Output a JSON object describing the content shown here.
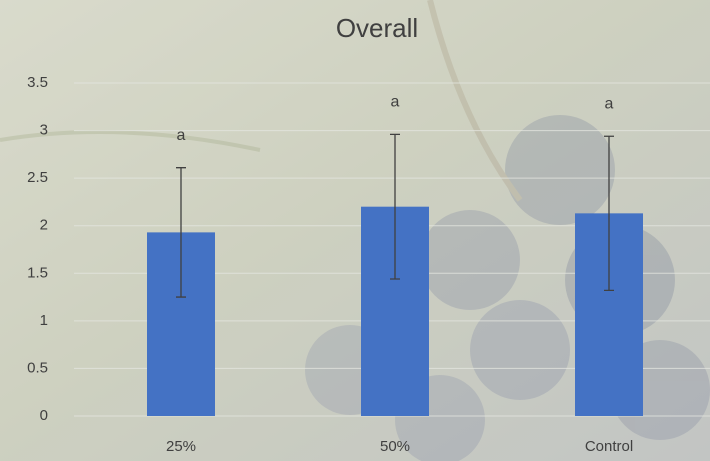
{
  "chart_data": {
    "type": "bar",
    "title": "Overall",
    "categories": [
      "25%",
      "50%",
      "Control"
    ],
    "values": [
      1.93,
      2.2,
      2.13
    ],
    "errors": [
      0.68,
      0.76,
      0.81
    ],
    "annotations": [
      "a",
      "a",
      "a"
    ],
    "color": "#4472c4",
    "ylim": [
      0,
      3.5
    ],
    "yticks": [
      0,
      0.5,
      1,
      1.5,
      2,
      2.5,
      3,
      3.5
    ],
    "grid": true
  }
}
